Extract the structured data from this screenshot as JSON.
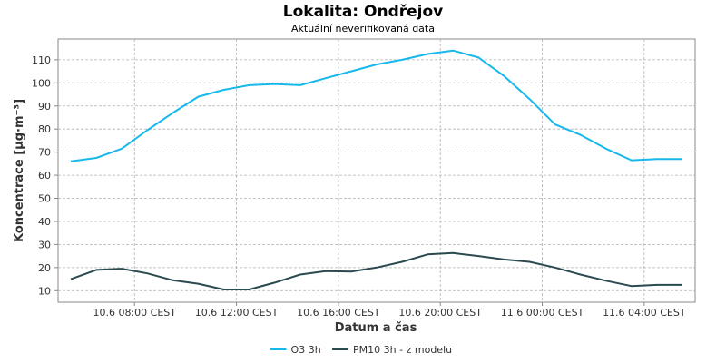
{
  "chart_data": {
    "type": "line",
    "title": "Lokalita: Ondřejov",
    "subtitle": "Aktuální neverifikovaná data",
    "xlabel": "Datum a čas",
    "ylabel": "Koncentrace [µg·m⁻³]",
    "ylim": [
      5,
      119
    ],
    "yticks": [
      10,
      20,
      30,
      40,
      50,
      60,
      70,
      80,
      90,
      100,
      110
    ],
    "xlim": [
      "2024-06-10T05:00",
      "2024-06-11T06:00"
    ],
    "xticks": [
      {
        "x": "2024-06-10T08:00",
        "label": "10.6 08:00 CEST"
      },
      {
        "x": "2024-06-10T12:00",
        "label": "10.6 12:00 CEST"
      },
      {
        "x": "2024-06-10T16:00",
        "label": "10.6 16:00 CEST"
      },
      {
        "x": "2024-06-10T20:00",
        "label": "10.6 20:00 CEST"
      },
      {
        "x": "2024-06-11T00:00",
        "label": "11.6 00:00 CEST"
      },
      {
        "x": "2024-06-11T04:00",
        "label": "11.6 04:00 CEST"
      }
    ],
    "x": [
      "2024-06-10T05:30",
      "2024-06-10T06:30",
      "2024-06-10T07:30",
      "2024-06-10T08:30",
      "2024-06-10T09:30",
      "2024-06-10T10:30",
      "2024-06-10T11:30",
      "2024-06-10T12:30",
      "2024-06-10T13:30",
      "2024-06-10T14:30",
      "2024-06-10T15:30",
      "2024-06-10T16:30",
      "2024-06-10T17:30",
      "2024-06-10T18:30",
      "2024-06-10T19:30",
      "2024-06-10T20:30",
      "2024-06-10T21:30",
      "2024-06-10T22:30",
      "2024-06-10T23:30",
      "2024-06-11T00:30",
      "2024-06-11T01:30",
      "2024-06-11T02:30",
      "2024-06-11T03:30",
      "2024-06-11T04:30",
      "2024-06-11T05:30"
    ],
    "series": [
      {
        "name": "O3 3h",
        "color": "#17b8eb",
        "values": [
          66,
          67.5,
          71.5,
          79.5,
          87,
          94,
          97,
          99,
          99.5,
          99,
          102,
          105,
          108,
          110,
          112.5,
          114,
          111,
          103,
          93,
          82,
          77.5,
          71.5,
          66.5,
          67,
          67
        ]
      },
      {
        "name": "PM10 3h - z modelu",
        "color": "#2b4a4f",
        "values": [
          15,
          19,
          19.5,
          17.5,
          14.5,
          13,
          10.5,
          10.5,
          13.5,
          17,
          18.5,
          18.3,
          20,
          22.5,
          25.7,
          26.3,
          25,
          23.5,
          22.5,
          20,
          17,
          14.3,
          12,
          12.5,
          12.5
        ]
      }
    ],
    "grid": true,
    "legend": "bottom-center"
  }
}
